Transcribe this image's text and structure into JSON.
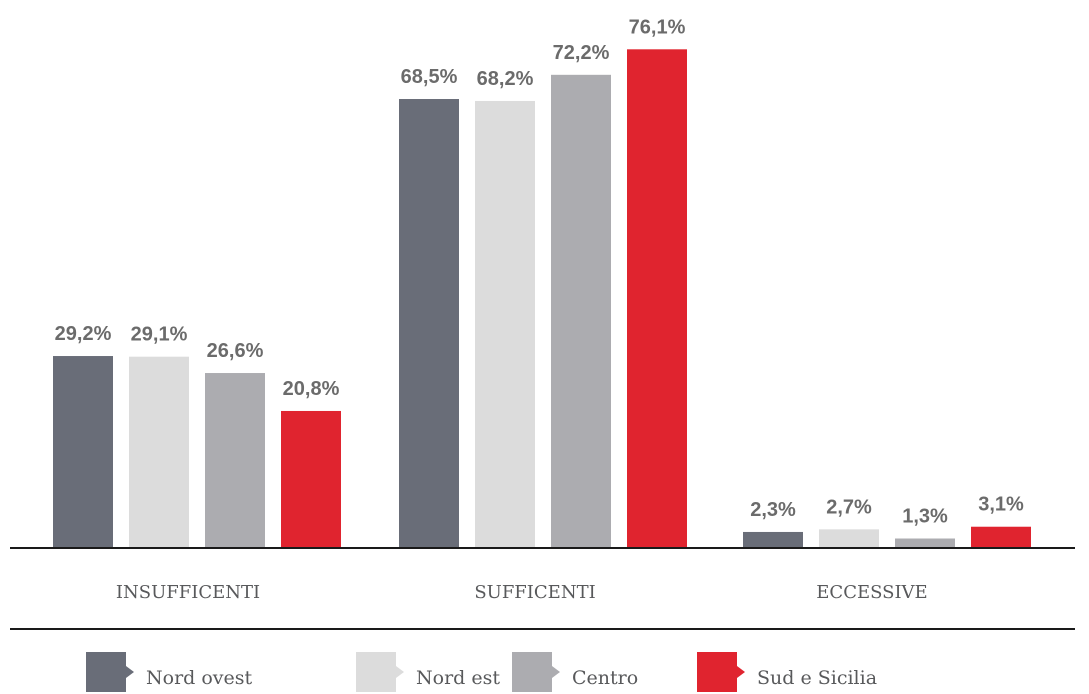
{
  "chart_data": {
    "type": "bar",
    "categories": [
      "INSUFFICENTI",
      "SUFFICENTI",
      "ECCESSIVE"
    ],
    "series": [
      {
        "name": "Nord ovest",
        "color": "#696d78",
        "values": [
          29.2,
          68.5,
          2.3
        ],
        "labels": [
          "29,2%",
          "68,5%",
          "2,3%"
        ]
      },
      {
        "name": "Nord est",
        "color": "#dcdcdc",
        "values": [
          29.1,
          68.2,
          2.7
        ],
        "labels": [
          "29,1%",
          "68,2%",
          "2,7%"
        ]
      },
      {
        "name": "Centro",
        "color": "#acacb0",
        "values": [
          26.6,
          72.2,
          1.3
        ],
        "labels": [
          "26,6%",
          "72,2%",
          "1,3%"
        ]
      },
      {
        "name": "Sud e Sicilia",
        "color": "#e0242f",
        "values": [
          20.8,
          76.1,
          3.1
        ],
        "labels": [
          "20,8%",
          "76,1%",
          "3,1%"
        ]
      }
    ],
    "title": "",
    "xlabel": "",
    "ylabel": "",
    "ylim": [
      0,
      80
    ],
    "grid": false,
    "legend_position": "bottom"
  }
}
